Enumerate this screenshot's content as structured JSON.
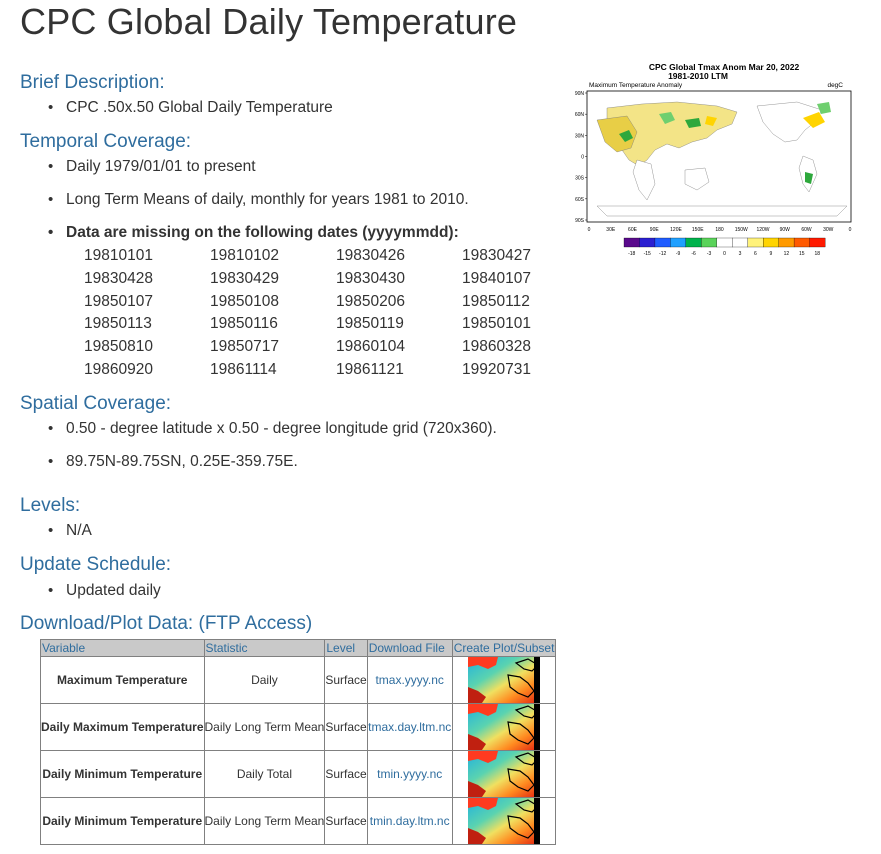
{
  "page": {
    "title": "CPC Global Daily Temperature"
  },
  "brief_description": {
    "heading": "Brief Description:",
    "items": [
      "CPC .50x.50 Global Daily Temperature"
    ]
  },
  "temporal_coverage": {
    "heading": "Temporal Coverage:",
    "items": [
      "Daily 1979/01/01 to present",
      "Long Term Means of daily, monthly for years 1981 to 2010."
    ],
    "missing_label": "Data are missing on the following dates (yyyymmdd):",
    "missing_dates": [
      "19810101",
      "19810102",
      "19830426",
      "19830427",
      "19830428",
      "19830429",
      "19830430",
      "19840107",
      "19850107",
      "19850108",
      "19850206",
      "19850112",
      "19850113",
      "19850116",
      "19850119",
      "19850101",
      "19850810",
      "19850717",
      "19860104",
      "19860328",
      "19860920",
      "19861114",
      "19861121",
      "19920731"
    ]
  },
  "spatial_coverage": {
    "heading": "Spatial Coverage:",
    "items": [
      "0.50 - degree latitude x 0.50 - degree longitude grid (720x360).",
      "89.75N-89.75SN, 0.25E-359.75E."
    ]
  },
  "levels": {
    "heading": "Levels:",
    "items": [
      "N/A"
    ]
  },
  "update_schedule": {
    "heading": "Update Schedule:",
    "items": [
      "Updated daily"
    ]
  },
  "download": {
    "heading": "Download/Plot Data: (FTP Access)",
    "columns": [
      "Variable",
      "Statistic",
      "Level",
      "Download File",
      "Create Plot/Subset"
    ],
    "rows": [
      {
        "variable": "Maximum Temperature",
        "statistic": "Daily",
        "level": "Surface",
        "file": "tmax.yyyy.nc"
      },
      {
        "variable": "Daily Maximum Temperature",
        "statistic": "Daily Long Term Mean",
        "level": "Surface",
        "file": "tmax.day.ltm.nc"
      },
      {
        "variable": "Daily Minimum Temperature",
        "statistic": "Daily Total",
        "level": "Surface",
        "file": "tmin.yyyy.nc"
      },
      {
        "variable": "Daily Minimum Temperature",
        "statistic": "Daily Long Term Mean",
        "level": "Surface",
        "file": "tmin.day.ltm.nc"
      }
    ]
  },
  "figure": {
    "title_line1": "CPC Global Tmax Anom Mar 20, 2022",
    "title_line2": "1981-2010 LTM",
    "subtitle": "Maximum Temperature Anomaly",
    "units": "degC",
    "lat_labels": [
      "90N",
      "60N",
      "30N",
      "0",
      "30S",
      "60S",
      "90S"
    ],
    "lon_labels": [
      "0",
      "30E",
      "60E",
      "90E",
      "120E",
      "150E",
      "180",
      "150W",
      "120W",
      "90W",
      "60W",
      "30W",
      "0"
    ],
    "colorbar_labels": [
      "-18",
      "-15",
      "-12",
      "-9",
      "-6",
      "-3",
      "0",
      "3",
      "6",
      "9",
      "12",
      "15",
      "18"
    ],
    "colorbar_colors": [
      "#5a0a8c",
      "#2b1fd1",
      "#1f5cff",
      "#1fa0ff",
      "#00b24c",
      "#5ad35a",
      "#ffffff",
      "#ffffff",
      "#fff27a",
      "#ffd400",
      "#ff9a00",
      "#ff5a00",
      "#ff1a00"
    ]
  }
}
